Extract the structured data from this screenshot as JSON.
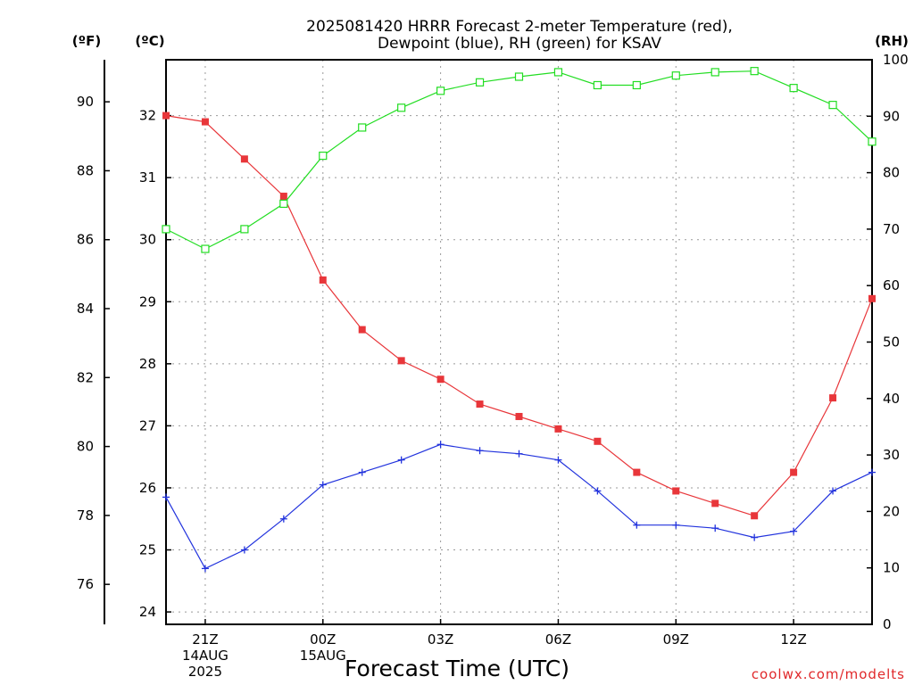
{
  "chart_data": {
    "type": "line",
    "title_lines": [
      "2025081420 HRRR Forecast 2-meter Temperature (red),",
      "Dewpoint (blue), RH (green) for KSAV"
    ],
    "xlabel": "Forecast Time (UTC)",
    "credit": "coolwx.com/modelts",
    "unit_labels": {
      "fahrenheit": "(ºF)",
      "celsius": "(ºC)",
      "rh": "(RH)"
    },
    "x_hours": [
      20,
      21,
      22,
      23,
      24,
      25,
      26,
      27,
      28,
      29,
      30,
      31,
      32,
      33,
      34,
      35,
      36,
      37,
      38
    ],
    "x_ticks": [
      {
        "hour": 21,
        "lines": [
          "21Z",
          "14AUG",
          "2025"
        ]
      },
      {
        "hour": 24,
        "lines": [
          "00Z",
          "15AUG"
        ]
      },
      {
        "hour": 27,
        "lines": [
          "03Z"
        ]
      },
      {
        "hour": 30,
        "lines": [
          "06Z"
        ]
      },
      {
        "hour": 33,
        "lines": [
          "09Z"
        ]
      },
      {
        "hour": 36,
        "lines": [
          "12Z"
        ]
      }
    ],
    "xlim": [
      20,
      38
    ],
    "celsius_axis": {
      "ylim": [
        23.8,
        32.9
      ],
      "ticks": [
        "24",
        "25",
        "26",
        "27",
        "28",
        "29",
        "30",
        "31",
        "32"
      ]
    },
    "fahrenheit_axis": {
      "ticks": [
        "76",
        "78",
        "80",
        "82",
        "84",
        "86",
        "88",
        "90"
      ]
    },
    "rh_axis": {
      "ylim": [
        0,
        100
      ],
      "ticks": [
        "0",
        "10",
        "20",
        "30",
        "40",
        "50",
        "60",
        "70",
        "80",
        "90",
        "100"
      ]
    },
    "grid": true,
    "series": [
      {
        "name": "Temperature",
        "axis": "celsius",
        "color": "#e8363a",
        "marker": "filled-square",
        "values": [
          32.0,
          31.9,
          31.3,
          30.7,
          29.35,
          28.55,
          28.05,
          27.75,
          27.35,
          27.15,
          26.95,
          26.75,
          26.25,
          25.95,
          25.75,
          25.55,
          26.25,
          27.45,
          29.05
        ]
      },
      {
        "name": "Dewpoint",
        "axis": "celsius",
        "color": "#2233dd",
        "marker": "plus",
        "values": [
          25.85,
          24.7,
          25.0,
          25.5,
          26.05,
          26.25,
          26.45,
          26.7,
          26.6,
          26.55,
          26.45,
          25.95,
          25.4,
          25.4,
          25.35,
          25.2,
          25.3,
          25.95,
          26.25
        ]
      },
      {
        "name": "RH",
        "axis": "rh",
        "color": "#22dd22",
        "marker": "open-square",
        "values": [
          70,
          66.5,
          70,
          74.5,
          83,
          88,
          91.5,
          94.5,
          96,
          97,
          97.8,
          95.5,
          95.5,
          97.2,
          97.8,
          98,
          95,
          92,
          85.5
        ]
      }
    ]
  }
}
